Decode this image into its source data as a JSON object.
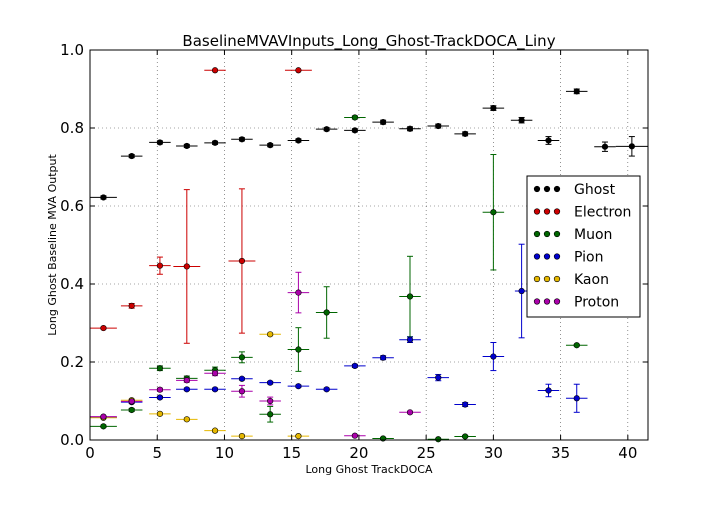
{
  "chart_data": {
    "type": "scatter",
    "title": "BaselineMVAVInputs_Long_Ghost-TrackDOCA_Liny",
    "xlabel": "Long Ghost TrackDOCA",
    "ylabel": "Long Ghost Baseline MVA Output",
    "xlim": [
      0,
      41.5
    ],
    "ylim": [
      0,
      1.0
    ],
    "xticks": [
      "0",
      "5",
      "10",
      "15",
      "20",
      "25",
      "30",
      "35",
      "40"
    ],
    "yticks": [
      "0.0",
      "0.2",
      "0.4",
      "0.6",
      "0.8",
      "1.0"
    ],
    "grid": true,
    "legend_position": "right",
    "series": [
      {
        "name": "Ghost",
        "color": "#000000",
        "points": [
          {
            "x": 1.0,
            "y": 0.622,
            "xerr": 1.0,
            "yerr": 0.004
          },
          {
            "x": 3.1,
            "y": 0.728,
            "xerr": 0.8,
            "yerr": 0.004
          },
          {
            "x": 5.2,
            "y": 0.763,
            "xerr": 0.8,
            "yerr": 0.004
          },
          {
            "x": 7.2,
            "y": 0.754,
            "xerr": 0.8,
            "yerr": 0.004
          },
          {
            "x": 9.3,
            "y": 0.762,
            "xerr": 0.8,
            "yerr": 0.004
          },
          {
            "x": 11.3,
            "y": 0.771,
            "xerr": 0.8,
            "yerr": 0.004
          },
          {
            "x": 13.4,
            "y": 0.756,
            "xerr": 0.8,
            "yerr": 0.004
          },
          {
            "x": 15.5,
            "y": 0.768,
            "xerr": 0.8,
            "yerr": 0.004
          },
          {
            "x": 17.6,
            "y": 0.797,
            "xerr": 0.8,
            "yerr": 0.004
          },
          {
            "x": 19.7,
            "y": 0.794,
            "xerr": 0.8,
            "yerr": 0.004
          },
          {
            "x": 21.8,
            "y": 0.815,
            "xerr": 0.8,
            "yerr": 0.005
          },
          {
            "x": 23.8,
            "y": 0.798,
            "xerr": 0.8,
            "yerr": 0.005
          },
          {
            "x": 25.9,
            "y": 0.805,
            "xerr": 0.8,
            "yerr": 0.005
          },
          {
            "x": 27.9,
            "y": 0.785,
            "xerr": 0.8,
            "yerr": 0.005
          },
          {
            "x": 30.0,
            "y": 0.851,
            "xerr": 0.8,
            "yerr": 0.006
          },
          {
            "x": 32.1,
            "y": 0.82,
            "xerr": 0.8,
            "yerr": 0.007
          },
          {
            "x": 34.1,
            "y": 0.768,
            "xerr": 0.8,
            "yerr": 0.01
          },
          {
            "x": 36.2,
            "y": 0.894,
            "xerr": 0.8,
            "yerr": 0.006
          },
          {
            "x": 38.3,
            "y": 0.752,
            "xerr": 0.8,
            "yerr": 0.012
          },
          {
            "x": 40.3,
            "y": 0.753,
            "xerr": 1.2,
            "yerr": 0.025
          }
        ]
      },
      {
        "name": "Electron",
        "color": "#cc0000",
        "points": [
          {
            "x": 1.0,
            "y": 0.287,
            "xerr": 1.0,
            "yerr": 0.002
          },
          {
            "x": 3.1,
            "y": 0.344,
            "xerr": 0.8,
            "yerr": 0.006
          },
          {
            "x": 5.2,
            "y": 0.447,
            "xerr": 0.8,
            "yerr": 0.022
          },
          {
            "x": 7.2,
            "y": 0.445,
            "xerr": 1.0,
            "yerr": 0.197
          },
          {
            "x": 9.3,
            "y": 0.948,
            "xerr": 0.8,
            "yerr": 0.0
          },
          {
            "x": 11.3,
            "y": 0.459,
            "xerr": 1.0,
            "yerr": 0.185
          },
          {
            "x": 15.5,
            "y": 0.948,
            "xerr": 1.0,
            "yerr": 0.0
          }
        ]
      },
      {
        "name": "Muon",
        "color": "#006600",
        "points": [
          {
            "x": 1.0,
            "y": 0.035,
            "xerr": 1.0,
            "yerr": 0.003
          },
          {
            "x": 3.1,
            "y": 0.077,
            "xerr": 0.8,
            "yerr": 0.004
          },
          {
            "x": 5.2,
            "y": 0.184,
            "xerr": 0.8,
            "yerr": 0.006
          },
          {
            "x": 7.2,
            "y": 0.158,
            "xerr": 0.8,
            "yerr": 0.006
          },
          {
            "x": 9.3,
            "y": 0.179,
            "xerr": 0.8,
            "yerr": 0.008
          },
          {
            "x": 11.3,
            "y": 0.212,
            "xerr": 0.8,
            "yerr": 0.014
          },
          {
            "x": 13.4,
            "y": 0.066,
            "xerr": 0.8,
            "yerr": 0.02
          },
          {
            "x": 15.5,
            "y": 0.232,
            "xerr": 0.8,
            "yerr": 0.056
          },
          {
            "x": 17.6,
            "y": 0.327,
            "xerr": 0.8,
            "yerr": 0.066
          },
          {
            "x": 19.7,
            "y": 0.827,
            "xerr": 0.8,
            "yerr": 0.004
          },
          {
            "x": 21.8,
            "y": 0.004,
            "xerr": 0.8,
            "yerr": 0.002
          },
          {
            "x": 23.8,
            "y": 0.368,
            "xerr": 0.8,
            "yerr": 0.103
          },
          {
            "x": 25.9,
            "y": 0.002,
            "xerr": 0.8,
            "yerr": 0.001
          },
          {
            "x": 27.9,
            "y": 0.009,
            "xerr": 0.8,
            "yerr": 0.002
          },
          {
            "x": 30.0,
            "y": 0.584,
            "xerr": 0.8,
            "yerr": 0.148
          },
          {
            "x": 36.2,
            "y": 0.243,
            "xerr": 0.8,
            "yerr": 0.002
          }
        ]
      },
      {
        "name": "Pion",
        "color": "#0000cc",
        "points": [
          {
            "x": 1.0,
            "y": 0.058,
            "xerr": 1.0,
            "yerr": 0.002
          },
          {
            "x": 3.1,
            "y": 0.097,
            "xerr": 0.8,
            "yerr": 0.003
          },
          {
            "x": 5.2,
            "y": 0.109,
            "xerr": 0.8,
            "yerr": 0.003
          },
          {
            "x": 7.2,
            "y": 0.13,
            "xerr": 0.8,
            "yerr": 0.003
          },
          {
            "x": 9.3,
            "y": 0.13,
            "xerr": 0.8,
            "yerr": 0.003
          },
          {
            "x": 11.3,
            "y": 0.157,
            "xerr": 0.8,
            "yerr": 0.003
          },
          {
            "x": 13.4,
            "y": 0.147,
            "xerr": 0.8,
            "yerr": 0.003
          },
          {
            "x": 15.5,
            "y": 0.138,
            "xerr": 0.8,
            "yerr": 0.003
          },
          {
            "x": 17.6,
            "y": 0.13,
            "xerr": 0.8,
            "yerr": 0.003
          },
          {
            "x": 19.7,
            "y": 0.19,
            "xerr": 0.8,
            "yerr": 0.004
          },
          {
            "x": 21.8,
            "y": 0.211,
            "xerr": 0.8,
            "yerr": 0.005
          },
          {
            "x": 23.8,
            "y": 0.257,
            "xerr": 0.8,
            "yerr": 0.007
          },
          {
            "x": 25.9,
            "y": 0.16,
            "xerr": 0.8,
            "yerr": 0.008
          },
          {
            "x": 27.9,
            "y": 0.091,
            "xerr": 0.8,
            "yerr": 0.005
          },
          {
            "x": 30.0,
            "y": 0.214,
            "xerr": 0.8,
            "yerr": 0.036
          },
          {
            "x": 32.1,
            "y": 0.382,
            "xerr": 0.5,
            "yerr": 0.12
          },
          {
            "x": 34.1,
            "y": 0.127,
            "xerr": 0.8,
            "yerr": 0.016
          },
          {
            "x": 36.2,
            "y": 0.107,
            "xerr": 0.8,
            "yerr": 0.036
          }
        ]
      },
      {
        "name": "Kaon",
        "color": "#e6b800",
        "points": [
          {
            "x": 1.0,
            "y": 0.057,
            "xerr": 1.0,
            "yerr": 0.002
          },
          {
            "x": 3.1,
            "y": 0.102,
            "xerr": 0.8,
            "yerr": 0.003
          },
          {
            "x": 5.2,
            "y": 0.067,
            "xerr": 0.8,
            "yerr": 0.003
          },
          {
            "x": 7.2,
            "y": 0.053,
            "xerr": 0.8,
            "yerr": 0.003
          },
          {
            "x": 9.3,
            "y": 0.024,
            "xerr": 0.8,
            "yerr": 0.003
          },
          {
            "x": 11.3,
            "y": 0.01,
            "xerr": 0.8,
            "yerr": 0.002
          },
          {
            "x": 13.4,
            "y": 0.271,
            "xerr": 0.8,
            "yerr": 0.003
          },
          {
            "x": 15.5,
            "y": 0.01,
            "xerr": 0.8,
            "yerr": 0.002
          }
        ]
      },
      {
        "name": "Proton",
        "color": "#aa00aa",
        "points": [
          {
            "x": 1.0,
            "y": 0.06,
            "xerr": 1.0,
            "yerr": 0.002
          },
          {
            "x": 3.1,
            "y": 0.099,
            "xerr": 0.8,
            "yerr": 0.003
          },
          {
            "x": 5.2,
            "y": 0.129,
            "xerr": 0.8,
            "yerr": 0.004
          },
          {
            "x": 7.2,
            "y": 0.153,
            "xerr": 0.8,
            "yerr": 0.005
          },
          {
            "x": 9.3,
            "y": 0.171,
            "xerr": 0.8,
            "yerr": 0.006
          },
          {
            "x": 11.3,
            "y": 0.125,
            "xerr": 0.8,
            "yerr": 0.015
          },
          {
            "x": 13.4,
            "y": 0.1,
            "xerr": 0.8,
            "yerr": 0.01
          },
          {
            "x": 15.5,
            "y": 0.378,
            "xerr": 0.8,
            "yerr": 0.052
          },
          {
            "x": 19.7,
            "y": 0.011,
            "xerr": 0.8,
            "yerr": 0.002
          },
          {
            "x": 23.8,
            "y": 0.071,
            "xerr": 0.8,
            "yerr": 0.002
          }
        ]
      }
    ]
  }
}
